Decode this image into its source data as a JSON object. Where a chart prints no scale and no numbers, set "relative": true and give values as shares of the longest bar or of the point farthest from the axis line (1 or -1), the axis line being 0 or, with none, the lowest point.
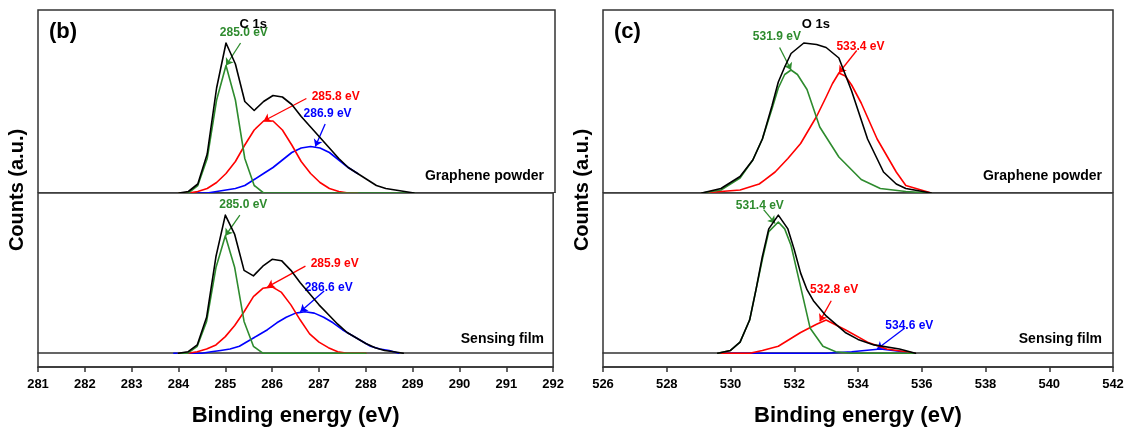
{
  "chart_data": [
    {
      "type": "line",
      "relative": true,
      "title": "C 1s",
      "ylabel": "Counts (a.u.)",
      "tick_labels": false,
      "marker": "none",
      "xlim": [
        281,
        292
      ],
      "annotations": [
        "(b)",
        "Graphene powder",
        {
          "text": "285.0 eV",
          "x": 285.0,
          "y": 0.85
        },
        {
          "text": "285.8 eV",
          "x": 285.8,
          "y": 0.48
        },
        {
          "text": "286.9 eV",
          "x": 286.9,
          "y": 0.31
        }
      ],
      "series": [
        {
          "color": "#000000",
          "x": [
            284.0,
            284.2,
            284.4,
            284.6,
            284.8,
            285.0,
            285.2,
            285.4,
            285.6,
            285.8,
            286.0,
            286.2,
            286.4,
            286.6,
            286.8,
            287.0,
            287.2,
            287.4,
            287.6,
            287.8,
            288.0,
            288.2,
            288.4,
            288.6,
            288.8,
            289.0
          ],
          "values": [
            0,
            0.01,
            0.06,
            0.26,
            0.7,
            1.0,
            0.86,
            0.61,
            0.55,
            0.61,
            0.65,
            0.64,
            0.59,
            0.51,
            0.44,
            0.37,
            0.3,
            0.23,
            0.17,
            0.13,
            0.09,
            0.05,
            0.03,
            0.02,
            0.01,
            0
          ]
        },
        {
          "color": "#2e8b2e",
          "x": [
            284.0,
            284.2,
            284.4,
            284.6,
            284.8,
            285.0,
            285.2,
            285.4,
            285.6,
            285.8,
            286.0,
            286.2,
            286.4,
            286.6,
            286.8,
            287.0,
            287.2,
            287.4,
            287.6,
            287.8,
            288.0,
            288.2,
            288.4,
            288.6,
            288.8,
            289.0
          ],
          "values": [
            0,
            0,
            0.05,
            0.23,
            0.62,
            0.85,
            0.62,
            0.23,
            0.05,
            0,
            0,
            0,
            0,
            0,
            0,
            0,
            0,
            0,
            0,
            0,
            0,
            0,
            0,
            0,
            0,
            0
          ]
        },
        {
          "color": "#ff0000",
          "x": [
            284.0,
            284.2,
            284.4,
            284.6,
            284.8,
            285.0,
            285.2,
            285.4,
            285.6,
            285.8,
            286.0,
            286.2,
            286.4,
            286.6,
            286.8,
            287.0,
            287.2,
            287.4,
            287.6,
            287.8
          ],
          "values": [
            0,
            0,
            0.01,
            0.03,
            0.07,
            0.13,
            0.21,
            0.32,
            0.42,
            0.48,
            0.48,
            0.42,
            0.32,
            0.21,
            0.13,
            0.07,
            0.03,
            0.01,
            0,
            0
          ]
        },
        {
          "color": "#0000ff",
          "x": [
            284.4,
            284.6,
            284.8,
            285.0,
            285.2,
            285.4,
            285.6,
            285.8,
            286.0,
            286.2,
            286.4,
            286.6,
            286.8,
            287.0,
            287.2,
            287.4,
            287.6,
            287.8
          ],
          "values": [
            0,
            0,
            0.01,
            0.02,
            0.03,
            0.05,
            0.09,
            0.13,
            0.17,
            0.22,
            0.27,
            0.3,
            0.31,
            0.3,
            0.27,
            0.22,
            0.17,
            0.13
          ]
        }
      ]
    },
    {
      "type": "line",
      "relative": true,
      "xlabel": "Binding energy (eV)",
      "tick_labels": "x",
      "marker": "none",
      "xlim": [
        281,
        292
      ],
      "xticks": [
        281,
        282,
        283,
        284,
        285,
        286,
        287,
        288,
        289,
        290,
        291,
        292
      ],
      "annotations": [
        "Sensing film",
        {
          "text": "285.0 eV",
          "x": 285.0,
          "y": 0.85
        },
        {
          "text": "285.9 eV",
          "x": 285.9,
          "y": 0.48
        },
        {
          "text": "286.6 eV",
          "x": 286.6,
          "y": 0.3
        }
      ],
      "series": [
        {
          "color": "#000000",
          "x": [
            284.0,
            284.2,
            284.4,
            284.6,
            284.8,
            285.0,
            285.2,
            285.4,
            285.6,
            285.8,
            286.0,
            286.2,
            286.4,
            286.6,
            286.8,
            287.0,
            287.2,
            287.4,
            287.6,
            287.8,
            288.0,
            288.2,
            288.4,
            288.6,
            288.8
          ],
          "values": [
            0,
            0.01,
            0.06,
            0.26,
            0.7,
            1.0,
            0.86,
            0.6,
            0.56,
            0.63,
            0.68,
            0.67,
            0.6,
            0.51,
            0.43,
            0.35,
            0.28,
            0.21,
            0.15,
            0.11,
            0.07,
            0.04,
            0.02,
            0.01,
            0
          ]
        },
        {
          "color": "#2e8b2e",
          "x": [
            284.0,
            284.2,
            284.4,
            284.6,
            284.8,
            285.0,
            285.2,
            285.4,
            285.6,
            285.8,
            286.0,
            286.4,
            286.8,
            287.2,
            287.6,
            288.0
          ],
          "values": [
            0,
            0,
            0.05,
            0.23,
            0.62,
            0.85,
            0.62,
            0.23,
            0.05,
            0,
            0,
            0,
            0,
            0,
            0,
            0
          ]
        },
        {
          "color": "#ff0000",
          "x": [
            284.0,
            284.2,
            284.4,
            284.6,
            284.8,
            285.0,
            285.2,
            285.4,
            285.6,
            285.8,
            286.0,
            286.2,
            286.4,
            286.6,
            286.8,
            287.0,
            287.2,
            287.4,
            287.6,
            287.8,
            288.0
          ],
          "values": [
            0,
            0,
            0.01,
            0.03,
            0.06,
            0.12,
            0.2,
            0.3,
            0.41,
            0.47,
            0.48,
            0.44,
            0.35,
            0.24,
            0.14,
            0.08,
            0.04,
            0.01,
            0,
            0,
            0
          ]
        },
        {
          "color": "#0000ff",
          "x": [
            283.9,
            284.1,
            284.3,
            284.5,
            284.7,
            284.9,
            285.1,
            285.3,
            285.5,
            285.7,
            285.9,
            286.1,
            286.3,
            286.5,
            286.7,
            286.9,
            287.1,
            287.3,
            287.5,
            287.7,
            287.9,
            288.1,
            288.3,
            288.5,
            288.7
          ],
          "values": [
            0,
            0,
            0,
            0,
            0.01,
            0.02,
            0.03,
            0.05,
            0.09,
            0.13,
            0.17,
            0.22,
            0.26,
            0.29,
            0.3,
            0.29,
            0.26,
            0.22,
            0.17,
            0.13,
            0.09,
            0.05,
            0.03,
            0.02,
            0
          ]
        }
      ]
    },
    {
      "type": "line",
      "relative": true,
      "title": "O 1s",
      "ylabel": "Counts (a.u.)",
      "tick_labels": false,
      "marker": "none",
      "xlim": [
        526,
        542
      ],
      "annotations": [
        "(c)",
        "Graphene powder",
        {
          "text": "531.9 eV",
          "x": 531.9,
          "y": 0.82
        },
        {
          "text": "533.4 eV",
          "x": 533.4,
          "y": 0.8
        }
      ],
      "series": [
        {
          "color": "#000000",
          "x": [
            529.1,
            529.7,
            530.3,
            530.7,
            531.0,
            531.3,
            531.5,
            531.7,
            531.9,
            532.3,
            532.7,
            533.0,
            533.4,
            533.8,
            534.3,
            534.8,
            535.2,
            535.5,
            536.3
          ],
          "values": [
            0,
            0.03,
            0.11,
            0.22,
            0.36,
            0.58,
            0.74,
            0.84,
            0.93,
            1.0,
            0.99,
            0.97,
            0.9,
            0.68,
            0.36,
            0.14,
            0.06,
            0.03,
            0
          ]
        },
        {
          "color": "#2e8b2e",
          "x": [
            529.1,
            529.7,
            530.3,
            530.7,
            531.0,
            531.3,
            531.5,
            531.7,
            531.9,
            532.1,
            532.4,
            532.8,
            533.4,
            534.1,
            534.7,
            535.5,
            536.3
          ],
          "values": [
            0,
            0.02,
            0.1,
            0.22,
            0.36,
            0.56,
            0.7,
            0.79,
            0.82,
            0.79,
            0.69,
            0.44,
            0.24,
            0.09,
            0.03,
            0.01,
            0
          ]
        },
        {
          "color": "#ff0000",
          "x": [
            529.1,
            529.7,
            530.3,
            530.9,
            531.4,
            531.8,
            532.2,
            532.7,
            533.0,
            533.2,
            533.4,
            533.6,
            533.8,
            534.1,
            534.6,
            535.2,
            535.5,
            536.3
          ],
          "values": [
            0,
            0.01,
            0.02,
            0.06,
            0.14,
            0.23,
            0.33,
            0.51,
            0.64,
            0.73,
            0.8,
            0.78,
            0.72,
            0.6,
            0.36,
            0.14,
            0.05,
            0
          ]
        }
      ]
    },
    {
      "type": "line",
      "relative": true,
      "xlabel": "Binding energy (eV)",
      "tick_labels": "x",
      "marker": "none",
      "xlim": [
        526,
        542
      ],
      "xticks": [
        526,
        528,
        530,
        532,
        534,
        536,
        538,
        540,
        542
      ],
      "annotations": [
        "Sensing film",
        {
          "text": "531.4 eV",
          "x": 531.4,
          "y": 0.94
        },
        {
          "text": "532.8 eV",
          "x": 532.8,
          "y": 0.23
        },
        {
          "text": "534.6 eV",
          "x": 534.6,
          "y": 0.03
        }
      ],
      "series": [
        {
          "color": "#000000",
          "x": [
            529.6,
            530.0,
            530.3,
            530.6,
            530.8,
            531.0,
            531.2,
            531.5,
            531.8,
            532.0,
            532.2,
            532.4,
            532.6,
            533.0,
            533.6,
            534.0,
            534.5,
            535.3,
            535.8
          ],
          "values": [
            0,
            0.02,
            0.08,
            0.24,
            0.46,
            0.7,
            0.9,
            1.0,
            0.9,
            0.75,
            0.58,
            0.46,
            0.38,
            0.27,
            0.15,
            0.1,
            0.06,
            0.03,
            0
          ]
        },
        {
          "color": "#2e8b2e",
          "x": [
            529.6,
            530.0,
            530.3,
            530.6,
            530.8,
            531.0,
            531.2,
            531.5,
            531.7,
            531.9,
            532.2,
            532.5,
            532.9,
            533.3,
            533.8,
            535.8
          ],
          "values": [
            0,
            0.02,
            0.08,
            0.24,
            0.46,
            0.68,
            0.88,
            0.95,
            0.9,
            0.78,
            0.48,
            0.18,
            0.05,
            0.01,
            0,
            0
          ]
        },
        {
          "color": "#ff0000",
          "x": [
            529.6,
            530.6,
            531.0,
            531.5,
            532.2,
            532.7,
            533.0,
            533.6,
            534.3,
            534.9,
            535.5,
            535.8
          ],
          "values": [
            0,
            0,
            0.02,
            0.05,
            0.15,
            0.21,
            0.24,
            0.17,
            0.08,
            0.03,
            0.01,
            0
          ]
        },
        {
          "color": "#0000ff",
          "x": [
            529.6,
            533.0,
            533.8,
            534.7,
            535.1,
            535.8
          ],
          "values": [
            0,
            0,
            0.01,
            0.03,
            0.02,
            0
          ]
        }
      ]
    }
  ]
}
